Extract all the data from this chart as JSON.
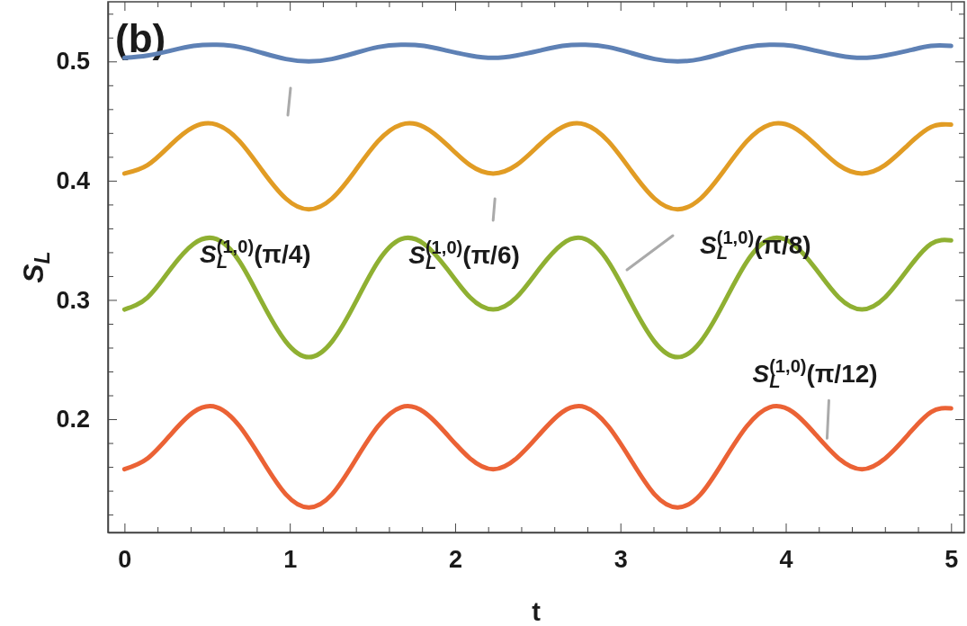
{
  "chart_data": {
    "type": "line",
    "title": "(b)",
    "xlabel": "t",
    "ylabel": "S$_{L}$",
    "x": [
      0,
      0.139,
      0.279,
      0.418,
      0.558,
      0.697,
      0.836,
      0.976,
      1.115,
      1.255,
      1.394,
      1.533,
      1.673,
      1.812,
      1.952,
      2.091,
      2.23,
      2.37,
      2.509,
      2.649,
      2.788,
      2.927,
      3.067,
      3.206,
      3.346,
      3.485,
      3.624,
      3.764,
      3.903,
      4.043,
      4.182,
      4.321,
      4.461,
      4.6,
      4.74,
      4.879,
      5.0
    ],
    "xlim": [
      -0.1,
      5.08
    ],
    "xticks": [
      0,
      {
        "value": 0.2,
        "label": null
      },
      {
        "value": 0.4,
        "label": null
      },
      {
        "value": 0.6,
        "label": null
      },
      {
        "value": 0.8,
        "label": null
      },
      1,
      {
        "value": 1.2,
        "label": null
      },
      {
        "value": 1.4,
        "label": null
      },
      {
        "value": 1.6,
        "label": null
      },
      {
        "value": 1.8,
        "label": null
      },
      2,
      {
        "value": 2.2,
        "label": null
      },
      {
        "value": 2.4,
        "label": null
      },
      {
        "value": 2.6,
        "label": null
      },
      {
        "value": 2.8,
        "label": null
      },
      3,
      {
        "value": 3.2,
        "label": null
      },
      {
        "value": 3.4,
        "label": null
      },
      {
        "value": 3.6,
        "label": null
      },
      {
        "value": 3.8,
        "label": null
      },
      4,
      {
        "value": 4.2,
        "label": null
      },
      {
        "value": 4.4,
        "label": null
      },
      {
        "value": 4.6,
        "label": null
      },
      {
        "value": 4.8,
        "label": null
      },
      5
    ],
    "ylim": [
      0.105,
      0.55
    ],
    "yticks": [
      {
        "value": 0.12,
        "label": null
      },
      {
        "value": 0.14,
        "label": null
      },
      {
        "value": 0.16,
        "label": null
      },
      {
        "value": 0.18,
        "label": null
      },
      {
        "value": 0.2,
        "label": "0.2"
      },
      {
        "value": 0.22,
        "label": null
      },
      {
        "value": 0.24,
        "label": null
      },
      {
        "value": 0.26,
        "label": null
      },
      {
        "value": 0.28,
        "label": null
      },
      {
        "value": 0.3,
        "label": "0.3"
      },
      {
        "value": 0.32,
        "label": null
      },
      {
        "value": 0.34,
        "label": null
      },
      {
        "value": 0.36,
        "label": null
      },
      {
        "value": 0.38,
        "label": null
      },
      {
        "value": 0.4,
        "label": "0.4"
      },
      {
        "value": 0.42,
        "label": null
      },
      {
        "value": 0.44,
        "label": null
      },
      {
        "value": 0.46,
        "label": null
      },
      {
        "value": 0.48,
        "label": null
      },
      {
        "value": 0.5,
        "label": "0.5"
      },
      {
        "value": 0.52,
        "label": null
      },
      {
        "value": 0.54,
        "label": null
      }
    ],
    "series": [
      {
        "color": "#5e81b5",
        "values": [
          0.503,
          0.505,
          0.509,
          0.513,
          0.514,
          0.512,
          0.507,
          0.502,
          0.5,
          0.502,
          0.507,
          0.512,
          0.514,
          0.513,
          0.509,
          0.505,
          0.503,
          0.505,
          0.509,
          0.513,
          0.514,
          0.512,
          0.507,
          0.502,
          0.5,
          0.502,
          0.507,
          0.512,
          0.514,
          0.513,
          0.509,
          0.505,
          0.503,
          0.505,
          0.509,
          0.513,
          0.513
        ]
      },
      {
        "color": "#e19c24",
        "values": [
          0.406,
          0.413,
          0.43,
          0.445,
          0.447,
          0.433,
          0.408,
          0.385,
          0.376,
          0.385,
          0.408,
          0.433,
          0.447,
          0.445,
          0.43,
          0.413,
          0.406,
          0.413,
          0.43,
          0.445,
          0.447,
          0.433,
          0.408,
          0.385,
          0.376,
          0.385,
          0.408,
          0.433,
          0.447,
          0.445,
          0.43,
          0.413,
          0.406,
          0.413,
          0.43,
          0.445,
          0.447
        ]
      },
      {
        "color": "#8fb032",
        "values": [
          0.292,
          0.302,
          0.326,
          0.347,
          0.351,
          0.332,
          0.297,
          0.265,
          0.252,
          0.265,
          0.297,
          0.332,
          0.351,
          0.347,
          0.326,
          0.302,
          0.292,
          0.302,
          0.326,
          0.347,
          0.351,
          0.332,
          0.297,
          0.265,
          0.252,
          0.265,
          0.297,
          0.332,
          0.351,
          0.347,
          0.326,
          0.302,
          0.292,
          0.302,
          0.326,
          0.347,
          0.35
        ]
      },
      {
        "color": "#eb6235",
        "values": [
          0.158,
          0.167,
          0.187,
          0.206,
          0.21,
          0.194,
          0.165,
          0.137,
          0.126,
          0.137,
          0.165,
          0.194,
          0.21,
          0.206,
          0.187,
          0.167,
          0.158,
          0.167,
          0.187,
          0.206,
          0.21,
          0.194,
          0.165,
          0.137,
          0.126,
          0.137,
          0.165,
          0.194,
          0.21,
          0.206,
          0.187,
          0.167,
          0.158,
          0.167,
          0.187,
          0.206,
          0.209
        ]
      }
    ],
    "annotations": [
      "S$_{L}$$^{(1,0)}$(π/4)",
      {
        "text": "S$_{L}$$^{(1,0)}$(π/6)",
        "x": 2.23,
        "y": 0.406
      },
      "S$_{L}$$^{(1,0)}$(π/8)",
      {
        "text": "S$_{L}$$^{(1,0)}$(π/12)",
        "x": 4.25,
        "y": 0.178
      }
    ],
    "grid": false,
    "line_style": "solid"
  }
}
